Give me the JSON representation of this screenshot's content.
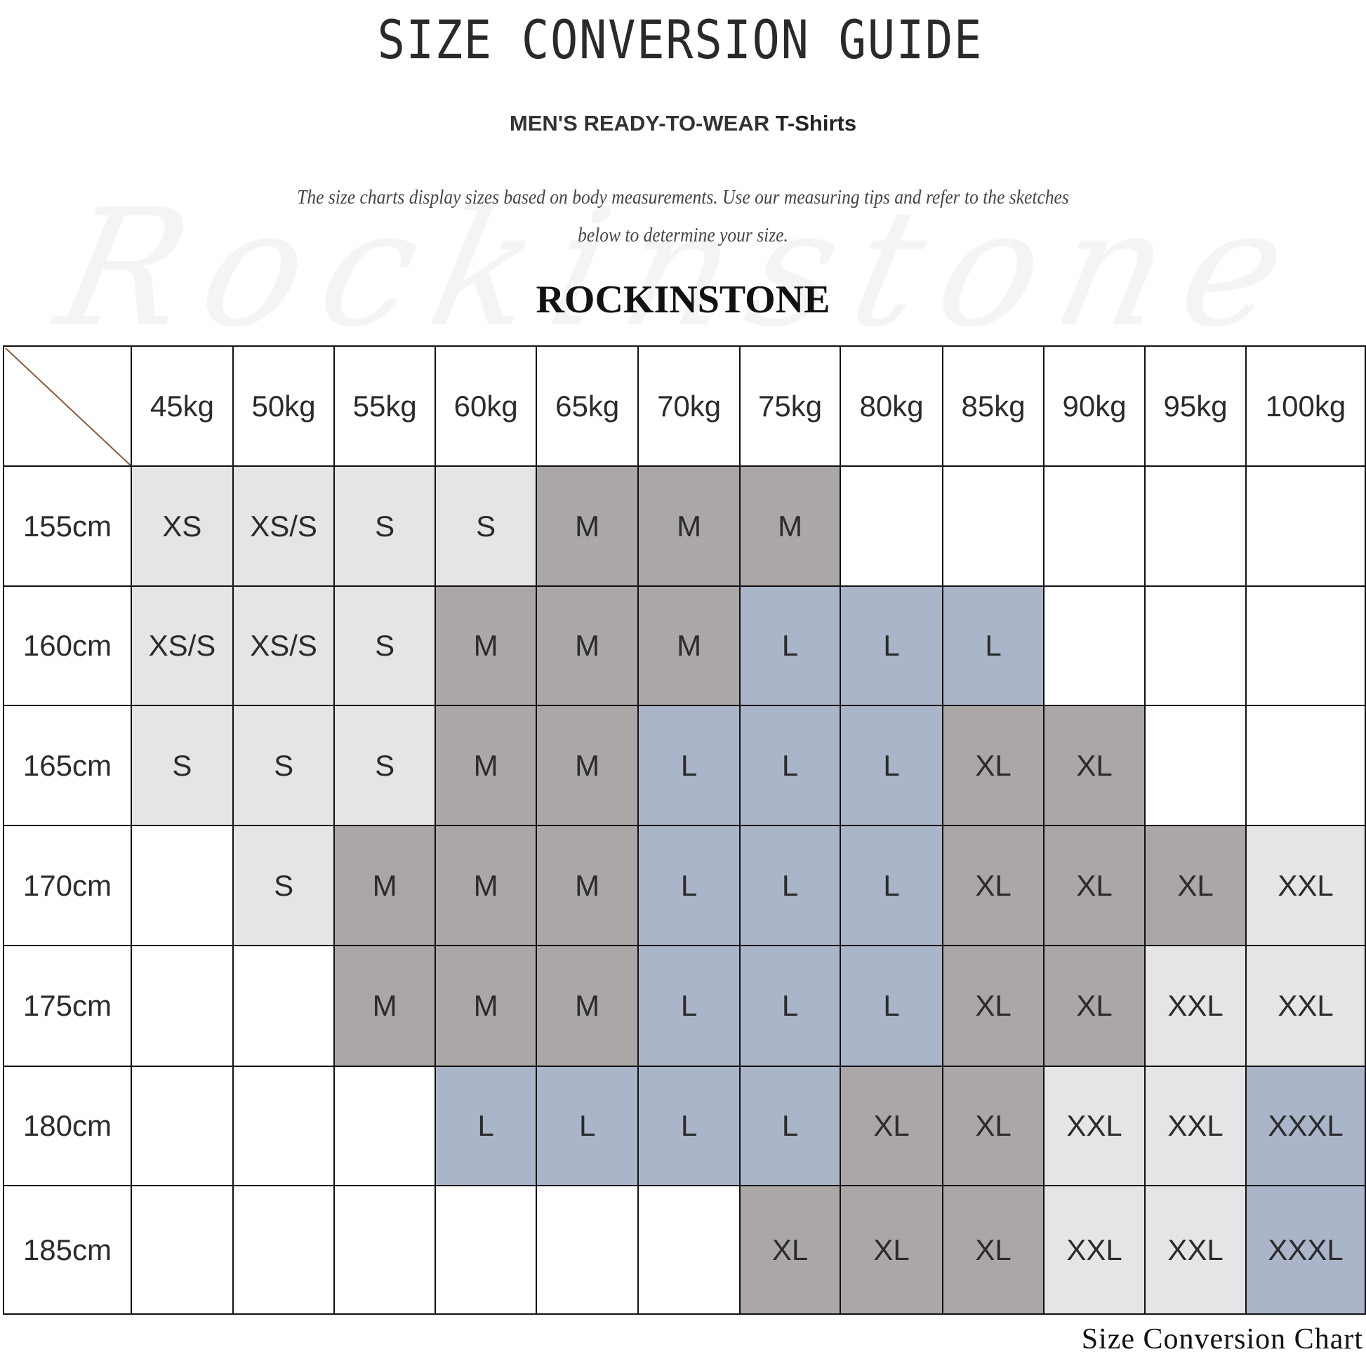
{
  "watermark": "Rockinstone",
  "title": "SIZE CONVERSION GUIDE",
  "subtitle": {
    "main": "MEN'S READY-TO-WEAR ",
    "product": "T-Shirts"
  },
  "description": {
    "line1": "The size charts display sizes based on body measurements. Use our measuring tips and refer to the sketches",
    "line2": "below to determine your size."
  },
  "brand": "ROCKINSTONE",
  "colors": {
    "XS": "#e5e5e5",
    "XS/S": "#e5e5e5",
    "S": "#e5e5e5",
    "M": "#aba7a6",
    "L": "#aab5c9",
    "XL": "#aba7a6",
    "XXL": "#e5e5e5",
    "XXXL": "#aab5c9",
    "": "#ffffff"
  },
  "table": {
    "weights": [
      "45kg",
      "50kg",
      "55kg",
      "60kg",
      "65kg",
      "70kg",
      "75kg",
      "80kg",
      "85kg",
      "90kg",
      "95kg",
      "100kg"
    ],
    "rows": [
      {
        "height": "155cm",
        "sizes": [
          "XS",
          "XS/S",
          "S",
          "S",
          "M",
          "M",
          "M",
          "",
          "",
          "",
          "",
          ""
        ]
      },
      {
        "height": "160cm",
        "sizes": [
          "XS/S",
          "XS/S",
          "S",
          "M",
          "M",
          "M",
          "L",
          "L",
          "L",
          "",
          "",
          ""
        ]
      },
      {
        "height": "165cm",
        "sizes": [
          "S",
          "S",
          "S",
          "M",
          "M",
          "L",
          "L",
          "L",
          "XL",
          "XL",
          "",
          ""
        ]
      },
      {
        "height": "170cm",
        "sizes": [
          "",
          "S",
          "M",
          "M",
          "M",
          "L",
          "L",
          "L",
          "XL",
          "XL",
          "XL",
          "XXL"
        ]
      },
      {
        "height": "175cm",
        "sizes": [
          "",
          "",
          "M",
          "M",
          "M",
          "L",
          "L",
          "L",
          "XL",
          "XL",
          "XXL",
          "XXL"
        ]
      },
      {
        "height": "180cm",
        "sizes": [
          "",
          "",
          "",
          "L",
          "L",
          "L",
          "L",
          "XL",
          "XL",
          "XXL",
          "XXL",
          "XXXL"
        ]
      },
      {
        "height": "185cm",
        "sizes": [
          "",
          "",
          "",
          "",
          "",
          "",
          "XL",
          "XL",
          "XL",
          "XXL",
          "XXL",
          "XXXL"
        ]
      }
    ]
  },
  "caption": "Size Conversion Chart"
}
